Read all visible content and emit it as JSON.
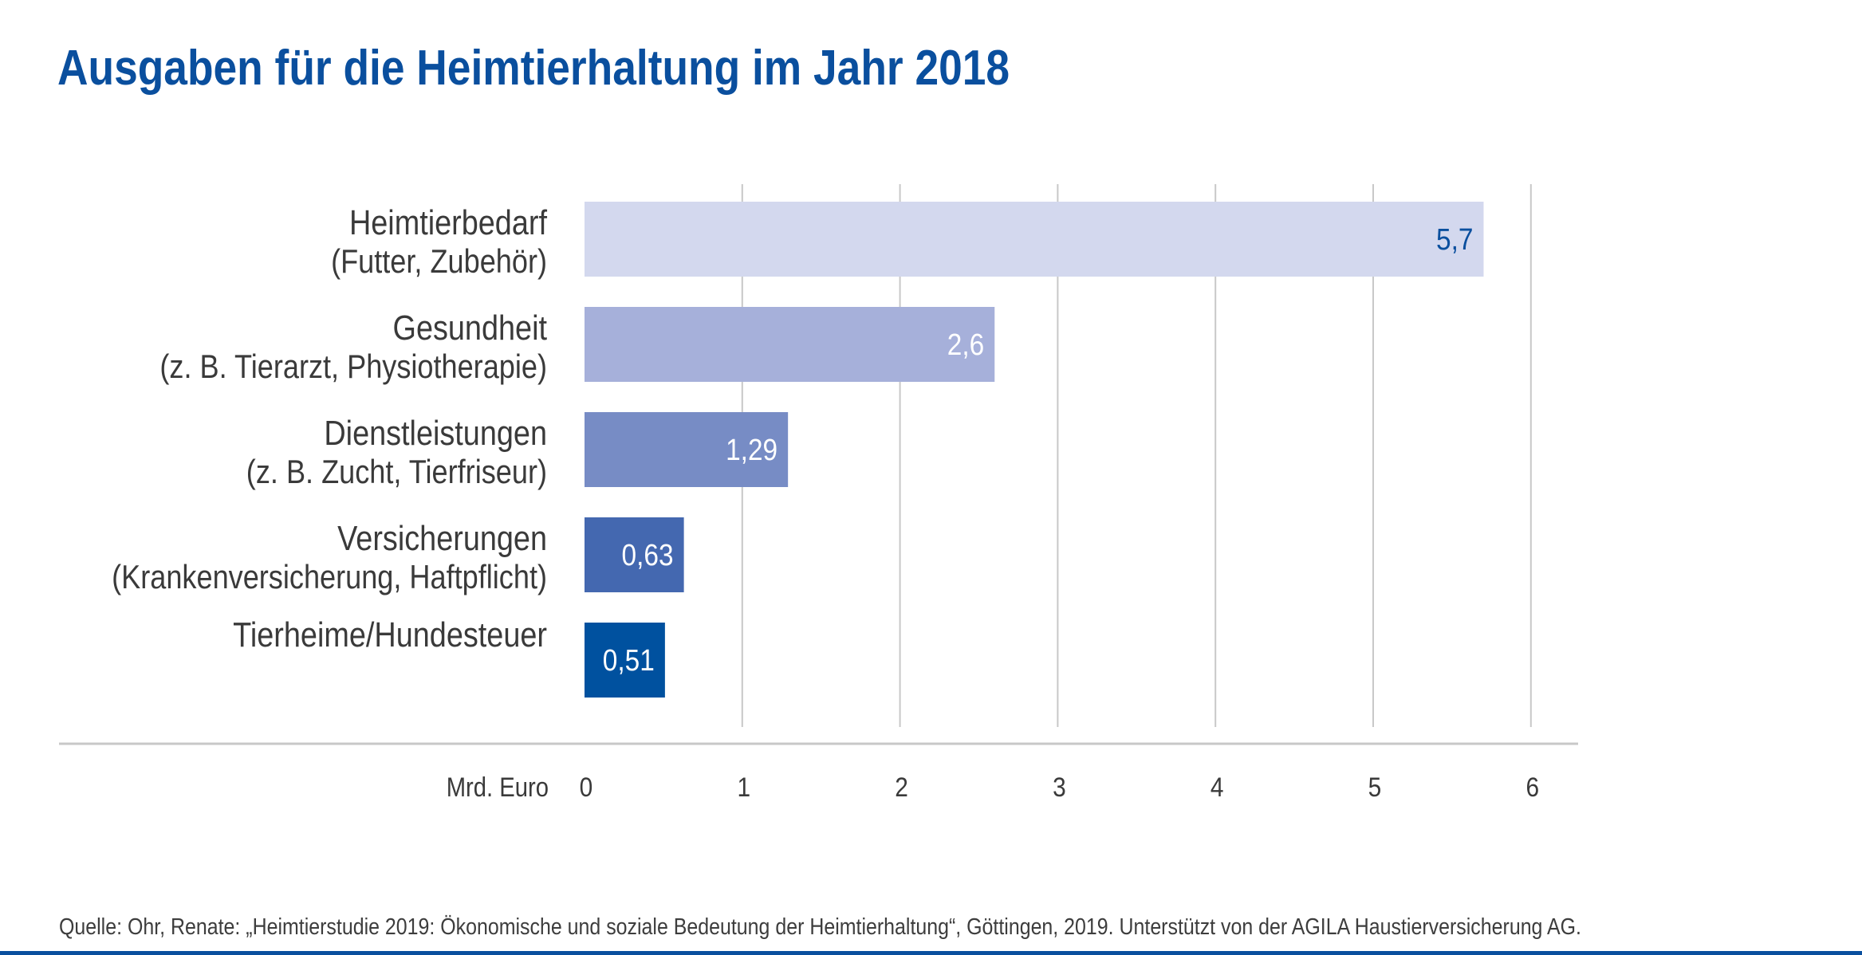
{
  "title": "Ausgaben für die Heimtierhaltung im Jahr 2018",
  "footer": "Quelle: Ohr, Renate: „Heimtierstudie 2019: Ökonomische und soziale Bedeutung der Heimtierhaltung“, Göttingen, 2019. Unterstützt von der AGILA Haustierversicherung AG.",
  "colors": {
    "title": "#0a4f9e",
    "text": "#3a3a3a",
    "grid": "#c8c8c8",
    "axis": "#c8c8c8",
    "bottom_bar": "#0a4f9e"
  },
  "chart_data": {
    "type": "bar",
    "orientation": "horizontal",
    "title": "Ausgaben für die Heimtierhaltung im Jahr 2018",
    "xlabel": "Mrd. Euro",
    "ylabel": "",
    "xlim": [
      0,
      6
    ],
    "grid": true,
    "ticks": [
      0,
      1,
      2,
      3,
      4,
      5,
      6
    ],
    "tick_labels": [
      "0",
      "1",
      "2",
      "3",
      "4",
      "5",
      "6"
    ],
    "categories": [
      {
        "main": "Heimtierbedarf",
        "sub": "(Futter, Zubehör)"
      },
      {
        "main": "Gesundheit",
        "sub": "(z. B. Tierarzt, Physiotherapie)"
      },
      {
        "main": "Dienstleistungen",
        "sub": "(z. B. Zucht, Tierfriseur)"
      },
      {
        "main": "Versicherungen",
        "sub": "(Krankenversicherung, Haftpflicht)"
      },
      {
        "main": "Tierheime/Hundesteuer",
        "sub": ""
      }
    ],
    "values": [
      5.7,
      2.6,
      1.29,
      0.63,
      0.51
    ],
    "value_labels": [
      "5,7",
      "2,6",
      "1,29",
      "0,63",
      "0,51"
    ],
    "bar_colors": [
      "#d3d8ee",
      "#a6b0da",
      "#778cc5",
      "#4468b0",
      "#00519f"
    ],
    "value_label_colors": [
      "#0a4f9e",
      "#ffffff",
      "#ffffff",
      "#ffffff",
      "#ffffff"
    ],
    "legend": null
  }
}
